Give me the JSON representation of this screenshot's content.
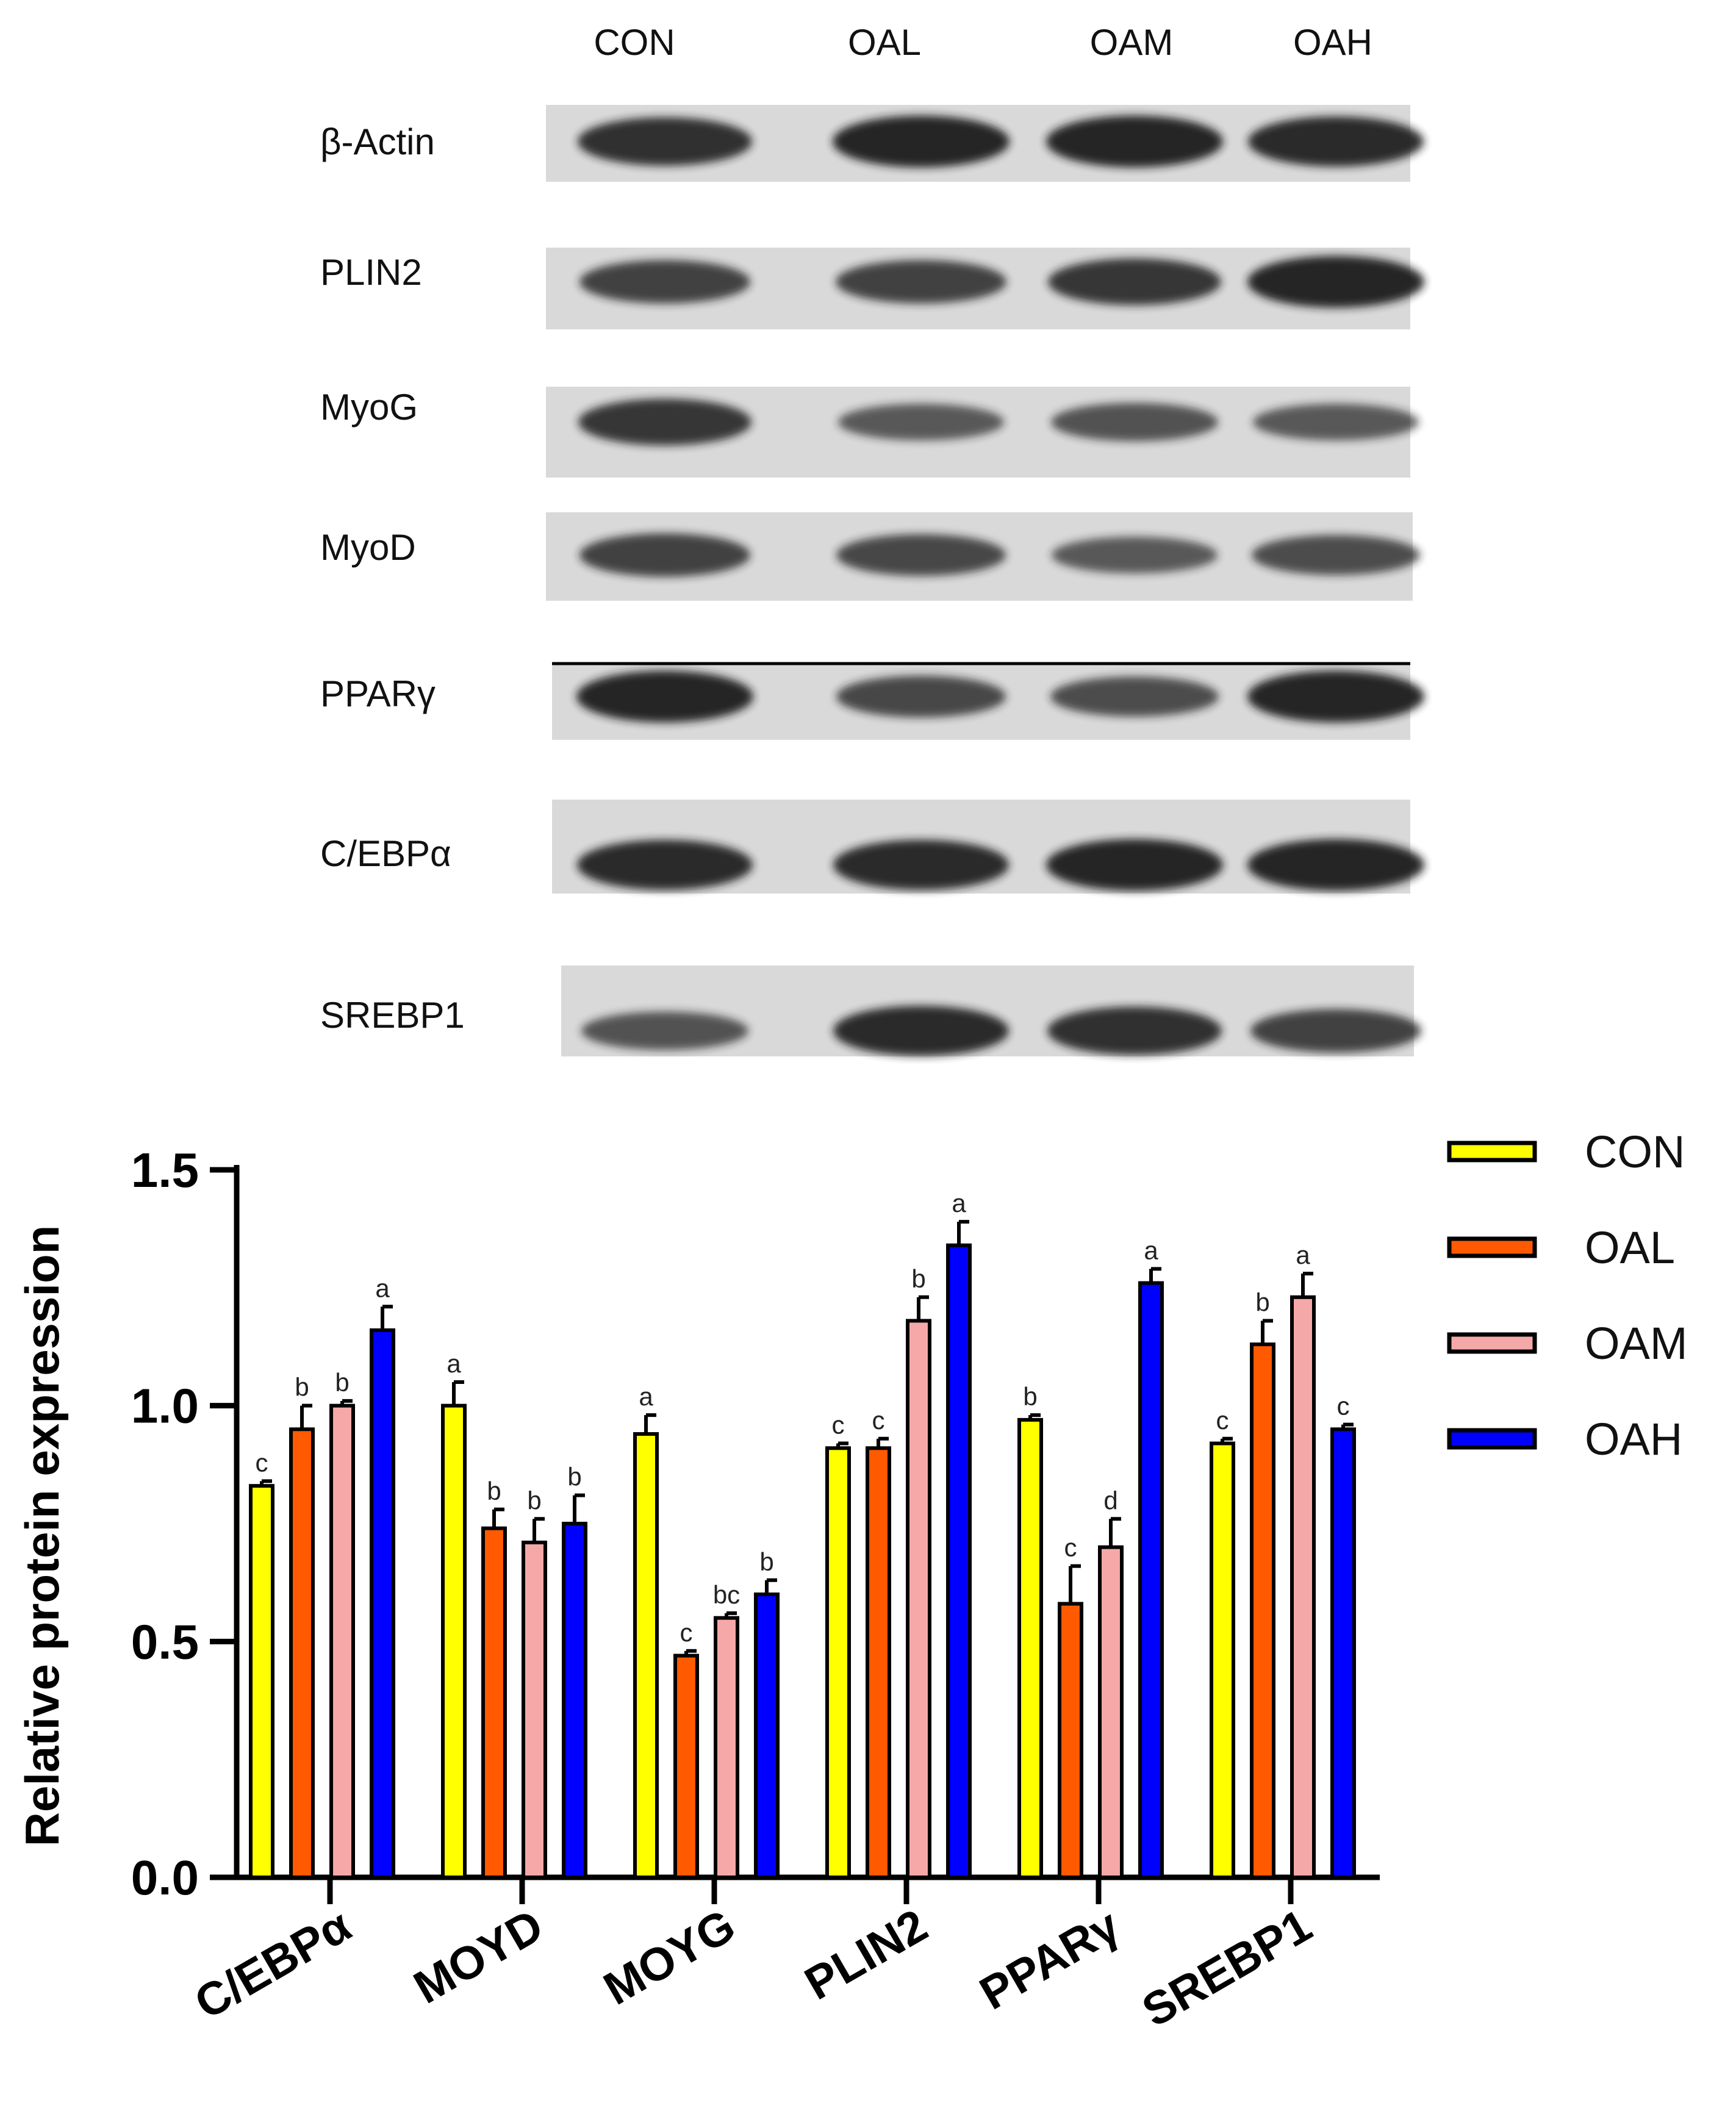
{
  "blot": {
    "lanes": [
      "CON",
      "OAL",
      "OAM",
      "OAH"
    ],
    "proteins": [
      "β-Actin",
      "PLIN2",
      "MyoG",
      "MyoD",
      "PPARγ",
      "C/EBPα",
      "SREBP1"
    ],
    "band_intensity": [
      [
        0.9,
        1.0,
        1.0,
        0.95
      ],
      [
        0.75,
        0.75,
        0.85,
        1.0
      ],
      [
        0.85,
        0.55,
        0.6,
        0.55
      ],
      [
        0.75,
        0.7,
        0.55,
        0.65
      ],
      [
        1.0,
        0.7,
        0.65,
        1.0
      ],
      [
        0.95,
        0.95,
        1.0,
        1.0
      ],
      [
        0.6,
        0.95,
        0.9,
        0.75
      ]
    ]
  },
  "chart_data": {
    "type": "bar",
    "ylabel": "Relative protein expression",
    "xlabel": "",
    "ylim": [
      0,
      1.5
    ],
    "yticks": [
      "0.0",
      "0.5",
      "1.0",
      "1.5"
    ],
    "categories": [
      "C/EBPα",
      "MOYD",
      "MOYG",
      "PLIN2",
      "PPARγ",
      "SREBP1"
    ],
    "series": [
      {
        "name": "CON",
        "color": "#ffff00",
        "values": [
          0.83,
          1.0,
          0.94,
          0.91,
          0.97,
          0.92
        ],
        "errors": [
          0.01,
          0.05,
          0.04,
          0.01,
          0.01,
          0.01
        ],
        "letters": [
          "c",
          "a",
          "a",
          "c",
          "b",
          "c"
        ]
      },
      {
        "name": "OAL",
        "color": "#ff5a00",
        "values": [
          0.95,
          0.74,
          0.47,
          0.91,
          0.58,
          1.13
        ],
        "errors": [
          0.05,
          0.04,
          0.01,
          0.02,
          0.08,
          0.05
        ],
        "letters": [
          "b",
          "b",
          "c",
          "c",
          "c",
          "b"
        ]
      },
      {
        "name": "OAM",
        "color": "#f5a8a8",
        "values": [
          1.0,
          0.71,
          0.55,
          1.18,
          0.7,
          1.23
        ],
        "errors": [
          0.01,
          0.05,
          0.01,
          0.05,
          0.06,
          0.05
        ],
        "letters": [
          "b",
          "b",
          "bc",
          "b",
          "d",
          "a"
        ]
      },
      {
        "name": "OAH",
        "color": "#0000ff",
        "values": [
          1.16,
          0.75,
          0.6,
          1.34,
          1.26,
          0.95
        ],
        "errors": [
          0.05,
          0.06,
          0.03,
          0.05,
          0.03,
          0.01
        ],
        "letters": [
          "a",
          "b",
          "b",
          "a",
          "a",
          "c"
        ]
      }
    ],
    "legend_position": "top-right",
    "grid": false
  }
}
